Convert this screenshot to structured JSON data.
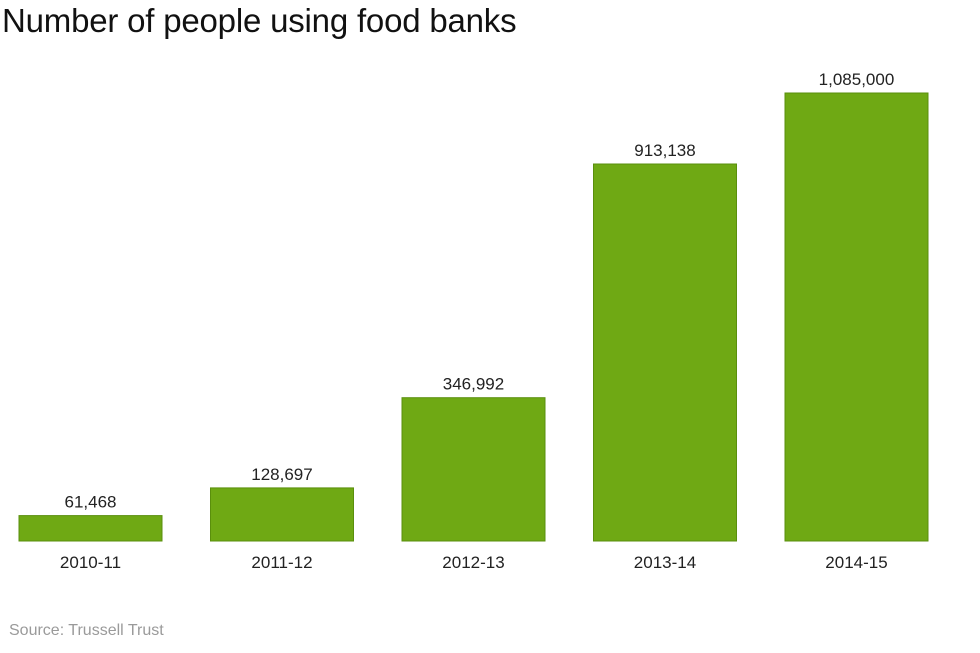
{
  "chart_data": {
    "type": "bar",
    "title": "Number of people using food banks",
    "xlabel": "",
    "ylabel": "",
    "categories": [
      "2010-11",
      "2011-12",
      "2012-13",
      "2013-14",
      "2014-15"
    ],
    "values": [
      61468,
      128697,
      346992,
      913138,
      1085000
    ],
    "value_labels": [
      "61,468",
      "128,697",
      "346,992",
      "913,138",
      "1,085,000"
    ],
    "ylim": [
      0,
      1085000
    ],
    "grid": false,
    "legend": "none",
    "source": "Source: Trussell Trust",
    "colors": {
      "bar_fill": "#6fa914",
      "bar_stroke": "#5a8f0c"
    }
  }
}
